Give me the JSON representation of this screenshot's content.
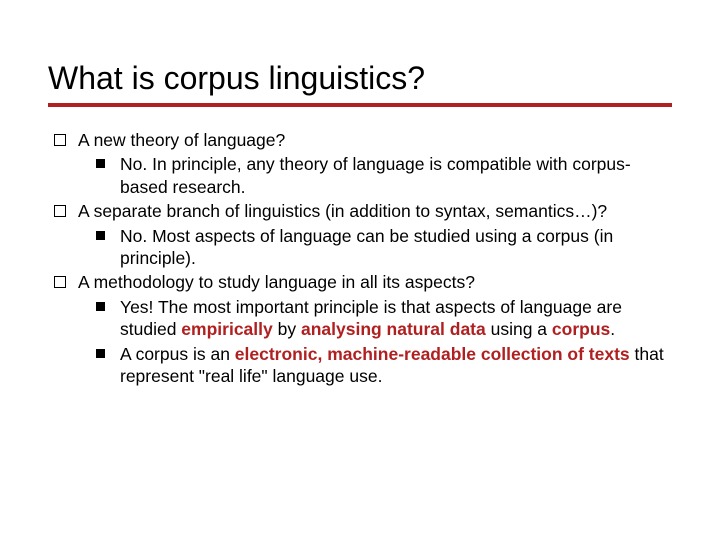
{
  "title": "What is corpus linguistics?",
  "colors": {
    "accent": "#b02020",
    "text": "#000000",
    "background": "#ffffff"
  },
  "typography": {
    "title_fontsize": 32,
    "body_fontsize": 17.5,
    "font_family": "Verdana"
  },
  "items": [
    {
      "text": "A new theory of language?",
      "subs": [
        {
          "segments": [
            {
              "t": "No. In principle, any theory of language is compatible with corpus-based research.",
              "style": "plain"
            }
          ]
        }
      ]
    },
    {
      "text": "A separate branch of linguistics (in addition to syntax, semantics…)?",
      "subs": [
        {
          "segments": [
            {
              "t": "No. Most aspects of language can be studied using a corpus (in principle).",
              "style": "plain"
            }
          ]
        }
      ]
    },
    {
      "text": "A methodology to study language in all its aspects?",
      "subs": [
        {
          "segments": [
            {
              "t": "Yes! The most important principle is that aspects of language are studied ",
              "style": "plain"
            },
            {
              "t": "empirically",
              "style": "accent"
            },
            {
              "t": " by ",
              "style": "plain"
            },
            {
              "t": "analysing natural data",
              "style": "accent"
            },
            {
              "t": " using a ",
              "style": "plain"
            },
            {
              "t": "corpus",
              "style": "accent"
            },
            {
              "t": ".",
              "style": "plain"
            }
          ]
        },
        {
          "segments": [
            {
              "t": "A corpus is an ",
              "style": "plain"
            },
            {
              "t": "electronic, machine-readable collection of texts",
              "style": "accent"
            },
            {
              "t": " that represent \"real life\" language use.",
              "style": "plain"
            }
          ]
        }
      ]
    }
  ]
}
